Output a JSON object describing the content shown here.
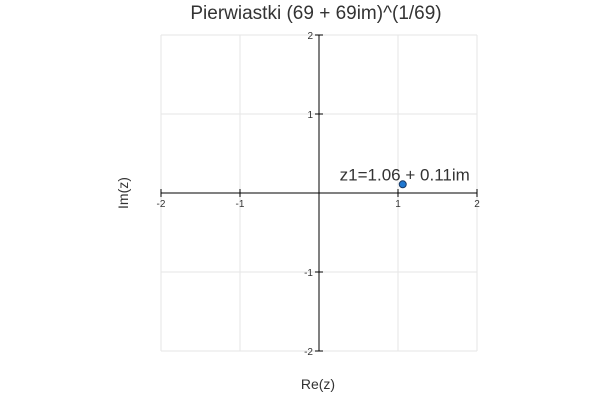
{
  "chart_data": {
    "type": "scatter",
    "title": "Pierwiastki (69 + 69im)^(1/69)",
    "xlabel": "Re(z)",
    "ylabel": "Im(z)",
    "xlim": [
      -2,
      2
    ],
    "ylim": [
      -2,
      2
    ],
    "x_ticks": [
      -2,
      -1,
      1,
      2
    ],
    "x_tick_labels": [
      "-2",
      "-1",
      "1",
      "2"
    ],
    "y_ticks": [
      -2,
      -1,
      1,
      2
    ],
    "y_tick_labels": [
      "-2",
      "-1",
      "1",
      "2"
    ],
    "grid": true,
    "series": [
      {
        "x": [
          1.06
        ],
        "y": [
          0.11
        ]
      }
    ],
    "annotations": [
      {
        "text": "z1=1.06 + 0.11im",
        "x": 1.06,
        "y": 0.11
      }
    ],
    "marker_color": "#1f77d0",
    "marker_edge_color": "#1a3a66"
  }
}
